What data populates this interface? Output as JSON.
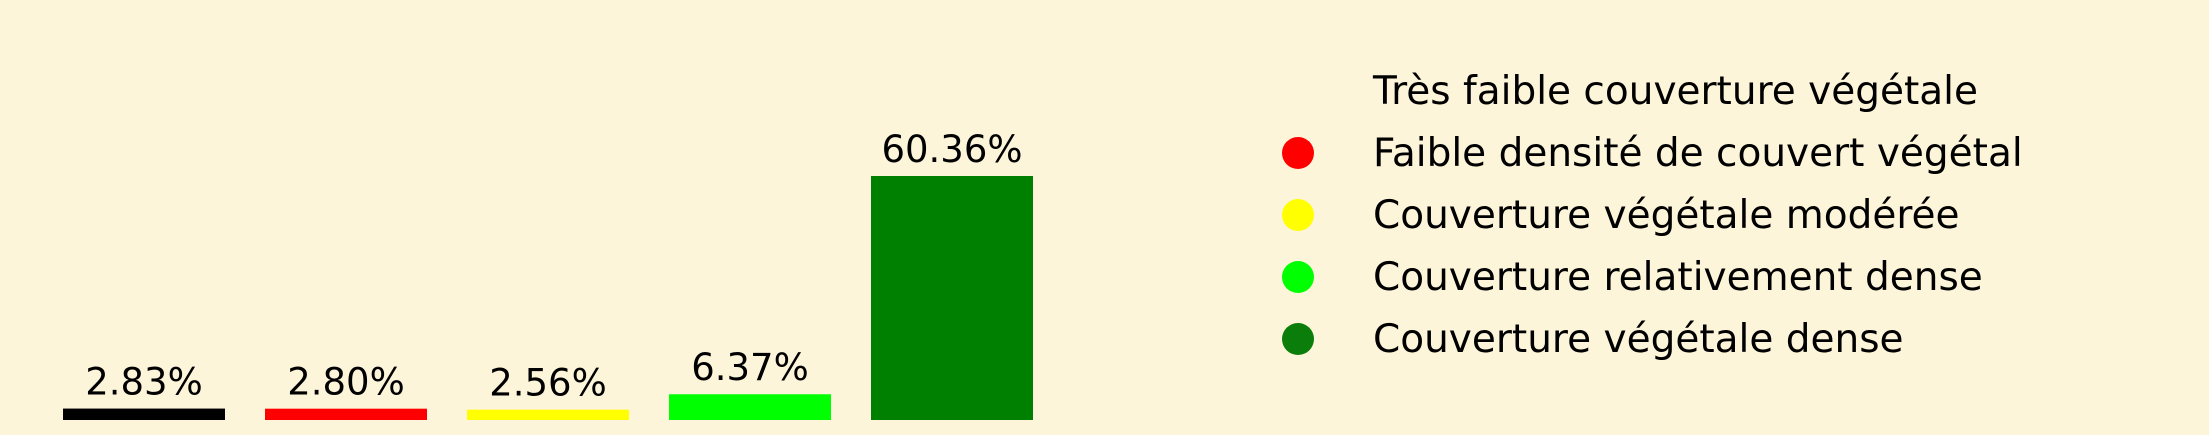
{
  "chart_data": {
    "type": "bar",
    "categories": [
      "Très faible couverture végétale",
      "Faible densité de couvert végétal",
      "Couverture végétale modérée",
      "Couverture relativement dense",
      "Couverture végétale dense"
    ],
    "values": [
      2.83,
      2.8,
      2.56,
      6.37,
      60.36
    ],
    "value_labels": [
      "2.83%",
      "2.80%",
      "2.56%",
      "6.37%",
      "60.36%"
    ],
    "colors": [
      "#000000",
      "#ff0000",
      "#ffff00",
      "#00ff00",
      "#008000"
    ],
    "legend": {
      "placement": "right",
      "entries": [
        "Très faible couverture végétale",
        "Faible densité de couvert végétal",
        "Couverture végétale modérée",
        "Couverture relativement dense",
        "Couverture végétale dense"
      ],
      "marker_colors": [
        "#fdf5d9",
        "#ff0000",
        "#ffff00",
        "#00ff00",
        "#0a7d0a"
      ]
    },
    "title": "",
    "xlabel": "",
    "ylabel": "",
    "ylim": [
      0,
      60.36
    ],
    "grid": false,
    "axes_visible": false,
    "background": "#fdf5d9"
  }
}
